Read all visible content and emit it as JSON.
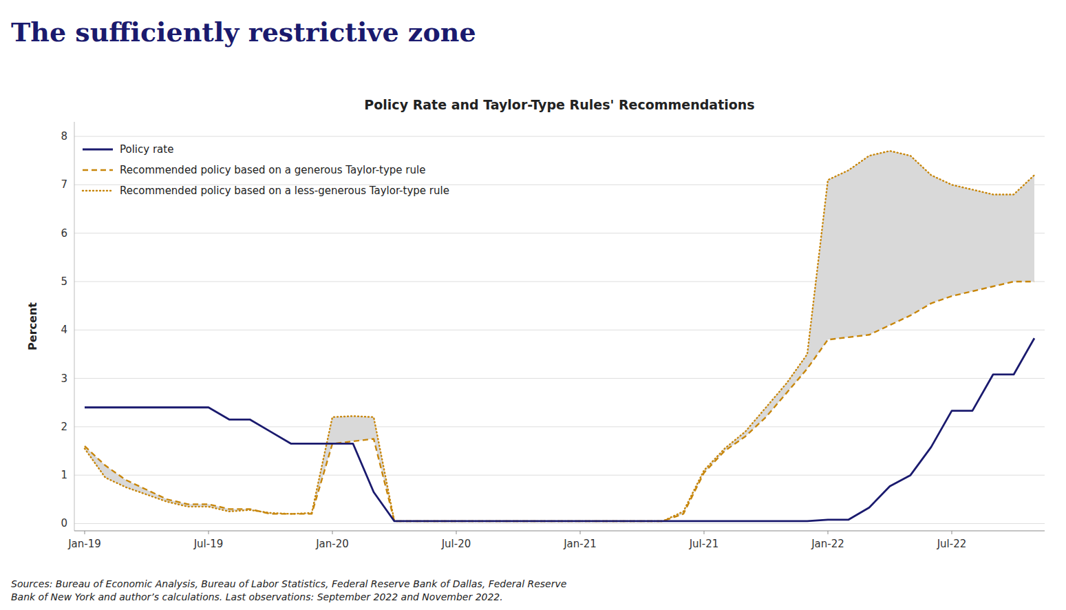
{
  "chart_data": {
    "type": "line",
    "title": "The sufficiently restrictive zone",
    "subtitle": "Policy Rate and Taylor-Type Rules' Recommendations",
    "ylabel": "Percent",
    "annotations": [
      "Sources: Bureau of Economic Analysis, Bureau of Labor Statistics, Federal Reserve Bank of Dallas, Federal Reserve\nBank of New York and author’s calculations. Last observations: September 2022 and November 2022."
    ],
    "categories": [
      "Jan-19",
      null,
      null,
      null,
      null,
      null,
      "Jul-19",
      null,
      null,
      null,
      null,
      null,
      "Jan-20",
      null,
      null,
      null,
      null,
      null,
      "Jul-20",
      null,
      null,
      null,
      null,
      null,
      "Jan-21",
      null,
      null,
      null,
      null,
      null,
      "Jul-21",
      null,
      null,
      null,
      null,
      null,
      "Jan-22",
      null,
      null,
      null,
      null,
      null,
      "Jul-22",
      null,
      null,
      null,
      null
    ],
    "series": [
      {
        "name": "Policy rate",
        "color": "#1a1a6e",
        "line_style": "solid",
        "values": [
          2.4,
          2.4,
          2.4,
          2.4,
          2.4,
          2.4,
          2.4,
          2.15,
          2.15,
          1.9,
          1.65,
          1.65,
          1.65,
          1.65,
          0.65,
          0.05,
          0.05,
          0.05,
          0.05,
          0.05,
          0.05,
          0.05,
          0.05,
          0.05,
          0.05,
          0.05,
          0.05,
          0.05,
          0.05,
          0.05,
          0.05,
          0.05,
          0.05,
          0.05,
          0.05,
          0.05,
          0.08,
          0.08,
          0.33,
          0.77,
          1.0,
          1.58,
          2.33,
          2.33,
          3.08,
          3.08,
          3.83
        ]
      },
      {
        "name": "Recommended policy based on a generous Taylor-type rule",
        "color": "#c8860a",
        "line_style": "dashed",
        "values": [
          1.6,
          1.2,
          0.9,
          0.7,
          0.5,
          0.4,
          0.4,
          0.3,
          0.3,
          0.2,
          0.2,
          0.2,
          1.65,
          1.7,
          1.75,
          0.05,
          0.05,
          0.05,
          0.05,
          0.05,
          0.05,
          0.05,
          0.05,
          0.05,
          0.05,
          0.05,
          0.05,
          0.05,
          0.05,
          0.2,
          1.05,
          1.5,
          1.8,
          2.2,
          2.7,
          3.2,
          3.8,
          3.85,
          3.9,
          4.1,
          4.3,
          4.55,
          4.7,
          4.8,
          4.9,
          5.0,
          5.0
        ]
      },
      {
        "name": "Recommended policy based on a less-generous Taylor-type rule",
        "color": "#c8860a",
        "line_style": "dotted",
        "values": [
          1.55,
          0.95,
          0.75,
          0.6,
          0.45,
          0.35,
          0.35,
          0.25,
          0.28,
          0.22,
          0.2,
          0.22,
          2.2,
          2.22,
          2.2,
          0.05,
          0.05,
          0.05,
          0.05,
          0.05,
          0.05,
          0.05,
          0.05,
          0.05,
          0.05,
          0.05,
          0.05,
          0.05,
          0.05,
          0.25,
          1.1,
          1.55,
          1.9,
          2.4,
          2.9,
          3.5,
          7.1,
          7.3,
          7.6,
          7.7,
          7.6,
          7.2,
          7.0,
          6.9,
          6.8,
          6.8,
          7.2
        ]
      }
    ],
    "ylim": [
      -0.15,
      8.3
    ],
    "yticks": [
      0,
      1,
      2,
      3,
      4,
      5,
      6,
      7,
      8
    ],
    "grid": true,
    "legend": "upper left"
  }
}
